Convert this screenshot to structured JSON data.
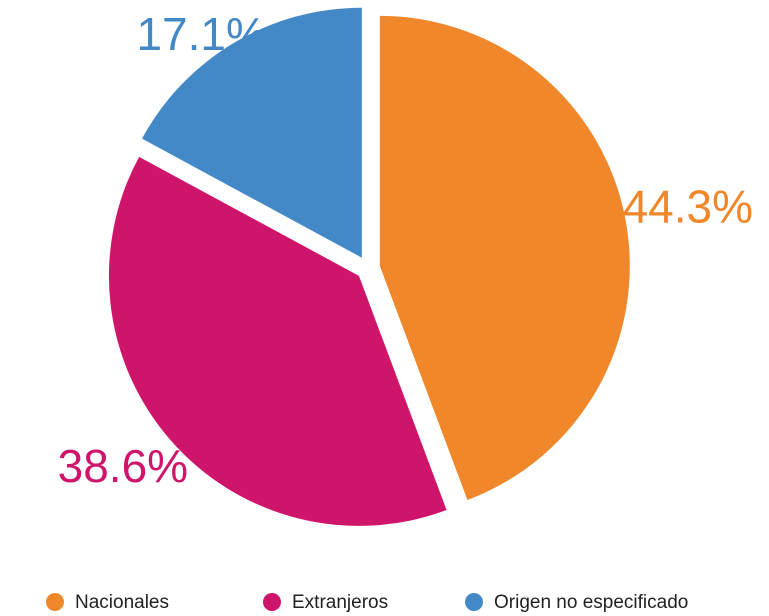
{
  "chart_data": {
    "type": "pie",
    "categories": [
      "Nacionales",
      "Extranjeros",
      "Origen no especificado"
    ],
    "values": [
      44.3,
      38.6,
      17.1
    ],
    "value_labels": [
      "44.3%",
      "38.6%",
      "17.1%"
    ],
    "colors": [
      "#f0872a",
      "#cf156b",
      "#4389c8"
    ],
    "legend": "bottom"
  }
}
